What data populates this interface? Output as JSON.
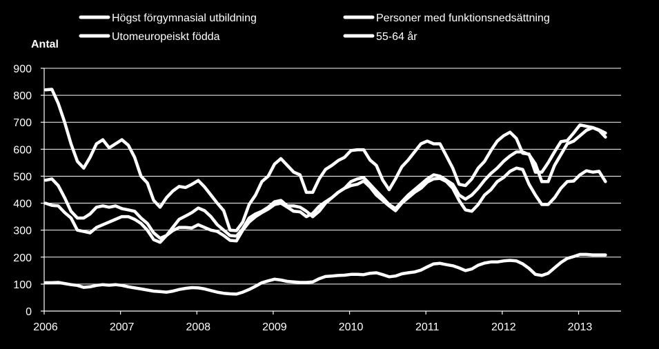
{
  "chart_data": {
    "type": "line",
    "title": "",
    "xlabel": "",
    "ylabel": "Antal",
    "ylim": [
      0,
      900
    ],
    "yticks": [
      0,
      100,
      200,
      300,
      400,
      500,
      600,
      700,
      800,
      900
    ],
    "xticks": [
      "2006",
      "2007",
      "2008",
      "2009",
      "2010",
      "2011",
      "2012",
      "2013"
    ],
    "x_start": 2006,
    "x_step_months": 1,
    "grid": true,
    "line_color": "#ffffff",
    "background": "#000000",
    "legend": {
      "placement": "top",
      "columns": 2
    },
    "series": [
      {
        "name": "Högst förgymnasial utbildning",
        "values": [
          820,
          822,
          770,
          700,
          620,
          555,
          530,
          570,
          620,
          635,
          605,
          620,
          635,
          615,
          570,
          500,
          475,
          410,
          385,
          420,
          445,
          462,
          458,
          470,
          484,
          460,
          430,
          400,
          372,
          300,
          298,
          330,
          395,
          430,
          480,
          500,
          545,
          565,
          540,
          515,
          505,
          440,
          440,
          490,
          525,
          540,
          558,
          570,
          595,
          598,
          598,
          560,
          540,
          485,
          450,
          490,
          535,
          560,
          590,
          620,
          630,
          620,
          620,
          575,
          530,
          470,
          465,
          490,
          530,
          555,
          595,
          630,
          650,
          663,
          640,
          585,
          582,
          515,
          515,
          550,
          590,
          628,
          632,
          660,
          690,
          685,
          680,
          670,
          645
        ]
      },
      {
        "name": "Personer med funktionsnedsättning",
        "values": [
          485,
          490,
          465,
          420,
          370,
          345,
          345,
          360,
          385,
          390,
          385,
          390,
          380,
          375,
          370,
          345,
          325,
          290,
          270,
          280,
          310,
          340,
          352,
          365,
          382,
          372,
          350,
          320,
          300,
          280,
          278,
          305,
          345,
          360,
          370,
          385,
          405,
          410,
          390,
          390,
          385,
          370,
          350,
          370,
          400,
          420,
          440,
          455,
          480,
          490,
          495,
          470,
          445,
          420,
          395,
          380,
          405,
          430,
          450,
          470,
          490,
          505,
          500,
          485,
          470,
          430,
          415,
          430,
          455,
          485,
          510,
          530,
          555,
          575,
          590,
          590,
          580,
          545,
          480,
          480,
          540,
          580,
          620,
          630,
          650,
          670,
          680,
          672,
          660
        ]
      },
      {
        "name": "Utomeuropeiskt födda",
        "values": [
          400,
          392,
          390,
          365,
          345,
          300,
          295,
          290,
          310,
          320,
          330,
          340,
          350,
          350,
          340,
          325,
          300,
          265,
          255,
          280,
          298,
          310,
          310,
          308,
          320,
          310,
          300,
          295,
          280,
          262,
          260,
          300,
          330,
          350,
          365,
          378,
          395,
          400,
          385,
          370,
          368,
          350,
          362,
          388,
          405,
          420,
          440,
          455,
          465,
          470,
          482,
          460,
          430,
          410,
          390,
          372,
          400,
          420,
          440,
          455,
          478,
          490,
          492,
          480,
          455,
          410,
          375,
          370,
          395,
          430,
          450,
          480,
          495,
          518,
          530,
          525,
          470,
          430,
          395,
          395,
          420,
          455,
          480,
          482,
          505,
          520,
          515,
          518,
          480
        ]
      },
      {
        "name": "55-64 år",
        "values": [
          105,
          105,
          106,
          102,
          98,
          95,
          88,
          90,
          95,
          98,
          96,
          98,
          95,
          90,
          86,
          82,
          78,
          74,
          72,
          70,
          74,
          80,
          84,
          87,
          86,
          82,
          76,
          70,
          66,
          64,
          63,
          70,
          80,
          92,
          105,
          112,
          118,
          115,
          110,
          108,
          106,
          106,
          108,
          120,
          128,
          130,
          132,
          133,
          136,
          136,
          135,
          140,
          142,
          135,
          127,
          130,
          138,
          142,
          145,
          152,
          164,
          175,
          177,
          172,
          168,
          160,
          150,
          156,
          170,
          178,
          182,
          182,
          186,
          188,
          186,
          175,
          158,
          136,
          132,
          140,
          160,
          180,
          195,
          202,
          210,
          210,
          208,
          208,
          208
        ]
      }
    ]
  }
}
